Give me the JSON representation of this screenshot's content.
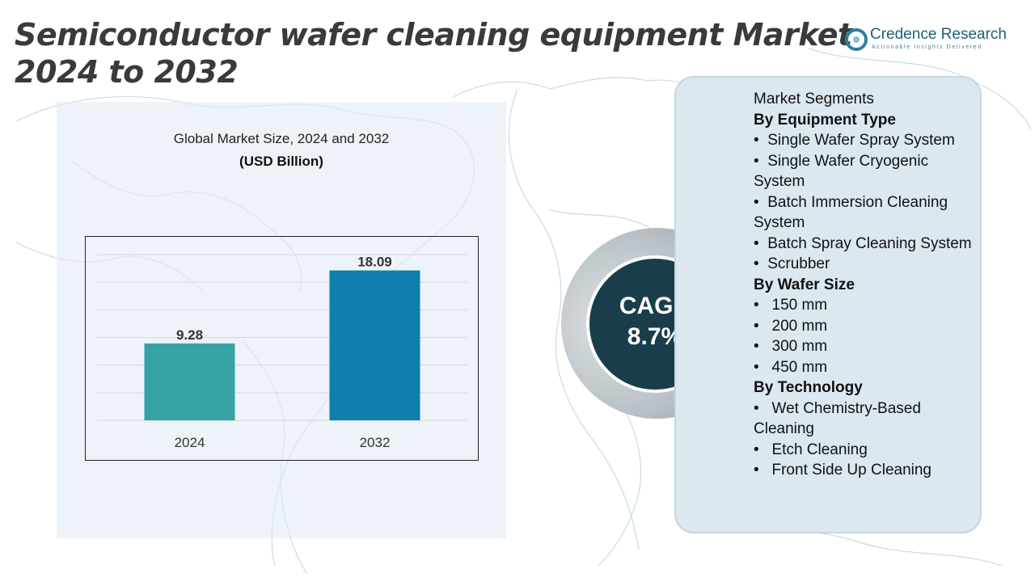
{
  "title": "Semiconductor wafer cleaning equipment Market 2024 to 2032",
  "logo": {
    "name": "Credence Research",
    "tagline": "Actionable Insights Delivered"
  },
  "chart_heading": "Global Market Size, 2024 and 2032",
  "chart_unit": "(USD Billion)",
  "chart_data": {
    "type": "bar",
    "categories": [
      "2024",
      "2032"
    ],
    "values": [
      9.28,
      18.09
    ],
    "data_labels": [
      "9.28",
      "18.09"
    ],
    "title": "Global Market Size, 2024 and 2032",
    "subtitle": "(USD Billion)",
    "xlabel": "",
    "ylabel": "",
    "ylim": [
      0,
      20
    ],
    "grid": true,
    "colors": [
      "#35a3a3",
      "#0f7fad"
    ]
  },
  "cagr": {
    "label": "CAGR",
    "value": "8.7%"
  },
  "segments": {
    "heading": "Market Segments",
    "groups": [
      {
        "title": "By Equipment Type",
        "items": [
          "Single Wafer Spray System",
          "Single Wafer Cryogenic System",
          "Batch Immersion Cleaning System",
          "Batch Spray Cleaning System",
          "Scrubber"
        ]
      },
      {
        "title": "By Wafer Size",
        "items": [
          "150 mm",
          "200 mm",
          "300 mm",
          "450 mm"
        ]
      },
      {
        "title": "By Technology",
        "items": [
          "Wet Chemistry-Based Cleaning",
          "Etch Cleaning",
          "Front Side Up Cleaning"
        ]
      }
    ]
  },
  "colors": {
    "title_text": "#3a3a3a",
    "cagr_bg": "#1a3d4b",
    "segment_panel": "#dbe8ef",
    "chart_panel": "#e2ecf3",
    "brand": "#1f5f7a"
  }
}
